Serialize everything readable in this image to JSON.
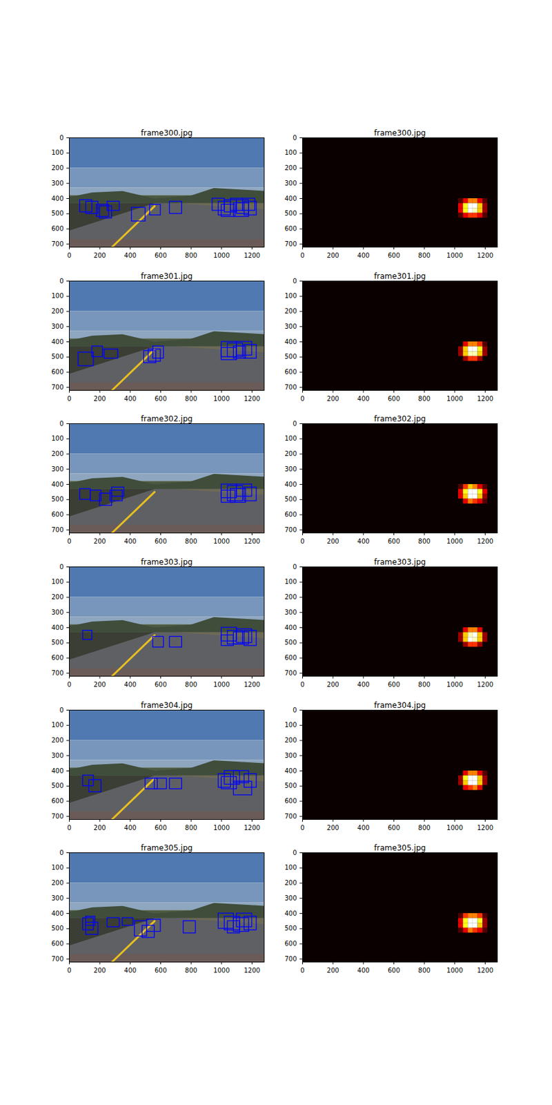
{
  "chart_data": [
    {
      "type": "image_boxes",
      "title": "frame300.jpg",
      "xlim": [
        0,
        1280
      ],
      "ylim": [
        720,
        0
      ],
      "xticks": [
        0,
        200,
        400,
        600,
        800,
        1000,
        1200
      ],
      "yticks": [
        0,
        100,
        200,
        300,
        400,
        500,
        600,
        700
      ],
      "color": "#0000ff",
      "boxes": [
        [
          70,
          410,
          150,
          490
        ],
        [
          110,
          420,
          190,
          500
        ],
        [
          180,
          440,
          260,
          520
        ],
        [
          200,
          450,
          280,
          530
        ],
        [
          250,
          420,
          330,
          480
        ],
        [
          410,
          460,
          500,
          550
        ],
        [
          530,
          440,
          600,
          510
        ],
        [
          660,
          420,
          740,
          500
        ],
        [
          940,
          400,
          1020,
          480
        ],
        [
          980,
          420,
          1060,
          510
        ],
        [
          1020,
          410,
          1100,
          490
        ],
        [
          1060,
          400,
          1140,
          480
        ],
        [
          1100,
          410,
          1180,
          500
        ],
        [
          1140,
          400,
          1220,
          480
        ],
        [
          1000,
          440,
          1090,
          520
        ],
        [
          1080,
          430,
          1180,
          520
        ],
        [
          1150,
          420,
          1230,
          510
        ]
      ]
    },
    {
      "type": "heatmap",
      "title": "frame300.jpg",
      "xlim": [
        0,
        1280
      ],
      "ylim": [
        720,
        0
      ],
      "xticks": [
        0,
        200,
        400,
        600,
        800,
        1000,
        1200
      ],
      "yticks": [
        0,
        100,
        200,
        300,
        400,
        500,
        600,
        700
      ],
      "zlim": [
        0,
        10
      ],
      "x_edges": [
        1024,
        1056,
        1088,
        1120,
        1152,
        1184,
        1216
      ],
      "y_edges": [
        400,
        432,
        464,
        496,
        528
      ],
      "values": [
        [
          1,
          3,
          5,
          5,
          3,
          1
        ],
        [
          3,
          7,
          10,
          10,
          6,
          2
        ],
        [
          3,
          7,
          10,
          9,
          6,
          2
        ],
        [
          1,
          3,
          4,
          4,
          3,
          1
        ]
      ]
    },
    {
      "type": "image_boxes",
      "title": "frame301.jpg",
      "xlim": [
        0,
        1280
      ],
      "ylim": [
        720,
        0
      ],
      "xticks": [
        0,
        200,
        400,
        600,
        800,
        1000,
        1200
      ],
      "yticks": [
        0,
        100,
        200,
        300,
        400,
        500,
        600,
        700
      ],
      "color": "#0000ff",
      "boxes": [
        [
          60,
          470,
          160,
          560
        ],
        [
          150,
          430,
          220,
          500
        ],
        [
          230,
          450,
          320,
          510
        ],
        [
          490,
          460,
          570,
          540
        ],
        [
          520,
          450,
          600,
          530
        ],
        [
          550,
          430,
          620,
          510
        ],
        [
          1000,
          400,
          1100,
          500
        ],
        [
          1040,
          410,
          1140,
          500
        ],
        [
          1100,
          400,
          1200,
          490
        ],
        [
          1000,
          440,
          1100,
          520
        ],
        [
          1150,
          420,
          1230,
          510
        ],
        [
          1080,
          430,
          1160,
          510
        ]
      ]
    },
    {
      "type": "heatmap",
      "title": "frame301.jpg",
      "xlim": [
        0,
        1280
      ],
      "ylim": [
        720,
        0
      ],
      "xticks": [
        0,
        200,
        400,
        600,
        800,
        1000,
        1200
      ],
      "yticks": [
        0,
        100,
        200,
        300,
        400,
        500,
        600,
        700
      ],
      "zlim": [
        0,
        10
      ],
      "x_edges": [
        1024,
        1056,
        1088,
        1120,
        1152,
        1184,
        1216
      ],
      "y_edges": [
        400,
        432,
        464,
        496,
        528
      ],
      "values": [
        [
          0,
          3,
          5,
          5,
          4,
          1
        ],
        [
          2,
          6,
          10,
          10,
          7,
          2
        ],
        [
          2,
          6,
          9,
          9,
          6,
          2
        ],
        [
          0,
          2,
          4,
          4,
          2,
          0
        ]
      ]
    },
    {
      "type": "image_boxes",
      "title": "frame302.jpg",
      "xlim": [
        0,
        1280
      ],
      "ylim": [
        720,
        0
      ],
      "xticks": [
        0,
        200,
        400,
        600,
        800,
        1000,
        1200
      ],
      "yticks": [
        0,
        100,
        200,
        300,
        400,
        500,
        600,
        700
      ],
      "color": "#0000ff",
      "boxes": [
        [
          70,
          430,
          140,
          500
        ],
        [
          140,
          440,
          210,
          510
        ],
        [
          200,
          460,
          280,
          540
        ],
        [
          270,
          440,
          350,
          510
        ],
        [
          280,
          420,
          360,
          480
        ],
        [
          1000,
          400,
          1100,
          490
        ],
        [
          1040,
          410,
          1140,
          510
        ],
        [
          1100,
          400,
          1200,
          480
        ],
        [
          1000,
          440,
          1090,
          520
        ],
        [
          1150,
          420,
          1230,
          510
        ],
        [
          1060,
          430,
          1160,
          520
        ]
      ]
    },
    {
      "type": "heatmap",
      "title": "frame302.jpg",
      "xlim": [
        0,
        1280
      ],
      "ylim": [
        720,
        0
      ],
      "xticks": [
        0,
        200,
        400,
        600,
        800,
        1000,
        1200
      ],
      "yticks": [
        0,
        100,
        200,
        300,
        400,
        500,
        600,
        700
      ],
      "zlim": [
        0,
        10
      ],
      "x_edges": [
        1024,
        1056,
        1088,
        1120,
        1152,
        1184,
        1216
      ],
      "y_edges": [
        400,
        432,
        464,
        496,
        528
      ],
      "values": [
        [
          1,
          4,
          6,
          5,
          3,
          1
        ],
        [
          3,
          7,
          10,
          10,
          7,
          3
        ],
        [
          3,
          6,
          10,
          10,
          6,
          2
        ],
        [
          0,
          3,
          5,
          4,
          3,
          1
        ]
      ]
    },
    {
      "type": "image_boxes",
      "title": "frame303.jpg",
      "xlim": [
        0,
        1280
      ],
      "ylim": [
        720,
        0
      ],
      "xticks": [
        0,
        200,
        400,
        600,
        800,
        1000,
        1200
      ],
      "yticks": [
        0,
        100,
        200,
        300,
        400,
        500,
        600,
        700
      ],
      "color": "#0000ff",
      "boxes": [
        [
          90,
          420,
          150,
          480
        ],
        [
          550,
          460,
          620,
          530
        ],
        [
          660,
          460,
          740,
          530
        ],
        [
          1000,
          400,
          1100,
          490
        ],
        [
          1040,
          420,
          1140,
          510
        ],
        [
          1100,
          410,
          1200,
          500
        ],
        [
          1000,
          450,
          1080,
          520
        ],
        [
          1150,
          420,
          1230,
          520
        ],
        [
          1080,
          430,
          1180,
          510
        ]
      ]
    },
    {
      "type": "heatmap",
      "title": "frame303.jpg",
      "xlim": [
        0,
        1280
      ],
      "ylim": [
        720,
        0
      ],
      "xticks": [
        0,
        200,
        400,
        600,
        800,
        1000,
        1200
      ],
      "yticks": [
        0,
        100,
        200,
        300,
        400,
        500,
        600,
        700
      ],
      "zlim": [
        0,
        10
      ],
      "x_edges": [
        1024,
        1056,
        1088,
        1120,
        1152,
        1184,
        1216
      ],
      "y_edges": [
        400,
        432,
        464,
        496,
        528
      ],
      "values": [
        [
          0,
          3,
          5,
          5,
          3,
          0
        ],
        [
          2,
          6,
          9,
          10,
          6,
          2
        ],
        [
          2,
          6,
          10,
          9,
          6,
          2
        ],
        [
          0,
          2,
          4,
          4,
          2,
          0
        ]
      ]
    },
    {
      "type": "image_boxes",
      "title": "frame304.jpg",
      "xlim": [
        0,
        1280
      ],
      "ylim": [
        720,
        0
      ],
      "xticks": [
        0,
        200,
        400,
        600,
        800,
        1000,
        1200
      ],
      "yticks": [
        0,
        100,
        200,
        300,
        400,
        500,
        600,
        700
      ],
      "color": "#0000ff",
      "boxes": [
        [
          90,
          430,
          160,
          500
        ],
        [
          130,
          460,
          210,
          540
        ],
        [
          500,
          450,
          580,
          520
        ],
        [
          560,
          450,
          640,
          520
        ],
        [
          660,
          450,
          740,
          520
        ],
        [
          980,
          420,
          1060,
          510
        ],
        [
          1020,
          400,
          1120,
          490
        ],
        [
          1080,
          400,
          1180,
          480
        ],
        [
          1000,
          440,
          1100,
          520
        ],
        [
          1080,
          470,
          1200,
          560
        ],
        [
          1150,
          420,
          1230,
          510
        ]
      ]
    },
    {
      "type": "heatmap",
      "title": "frame304.jpg",
      "xlim": [
        0,
        1280
      ],
      "ylim": [
        720,
        0
      ],
      "xticks": [
        0,
        200,
        400,
        600,
        800,
        1000,
        1200
      ],
      "yticks": [
        0,
        100,
        200,
        300,
        400,
        500,
        600,
        700
      ],
      "zlim": [
        0,
        10
      ],
      "x_edges": [
        1024,
        1056,
        1088,
        1120,
        1152,
        1184,
        1216
      ],
      "y_edges": [
        400,
        432,
        464,
        496,
        528
      ],
      "values": [
        [
          0,
          3,
          5,
          5,
          3,
          1
        ],
        [
          2,
          7,
          10,
          10,
          6,
          2
        ],
        [
          2,
          6,
          10,
          10,
          6,
          2
        ],
        [
          0,
          3,
          4,
          5,
          3,
          0
        ]
      ]
    },
    {
      "type": "image_boxes",
      "title": "frame305.jpg",
      "xlim": [
        0,
        1280
      ],
      "ylim": [
        720,
        0
      ],
      "xticks": [
        0,
        200,
        400,
        600,
        800,
        1000,
        1200
      ],
      "yticks": [
        0,
        100,
        200,
        300,
        400,
        500,
        600,
        700
      ],
      "color": "#0000ff",
      "boxes": [
        [
          90,
          430,
          160,
          510
        ],
        [
          110,
          460,
          190,
          540
        ],
        [
          110,
          420,
          170,
          480
        ],
        [
          250,
          430,
          330,
          490
        ],
        [
          350,
          430,
          420,
          480
        ],
        [
          430,
          450,
          510,
          550
        ],
        [
          480,
          480,
          560,
          560
        ],
        [
          510,
          440,
          600,
          520
        ],
        [
          750,
          450,
          830,
          530
        ],
        [
          980,
          400,
          1080,
          500
        ],
        [
          1020,
          420,
          1120,
          510
        ],
        [
          1100,
          400,
          1200,
          490
        ],
        [
          1040,
          450,
          1120,
          530
        ],
        [
          1150,
          420,
          1230,
          510
        ],
        [
          1080,
          430,
          1180,
          520
        ]
      ]
    },
    {
      "type": "heatmap",
      "title": "frame305.jpg",
      "xlim": [
        0,
        1280
      ],
      "ylim": [
        720,
        0
      ],
      "xticks": [
        0,
        200,
        400,
        600,
        800,
        1000,
        1200
      ],
      "yticks": [
        0,
        100,
        200,
        300,
        400,
        500,
        600,
        700
      ],
      "zlim": [
        0,
        10
      ],
      "x_edges": [
        1024,
        1056,
        1088,
        1120,
        1152,
        1184,
        1216
      ],
      "y_edges": [
        400,
        432,
        464,
        496,
        528
      ],
      "values": [
        [
          1,
          4,
          5,
          5,
          4,
          1
        ],
        [
          3,
          7,
          10,
          10,
          7,
          2
        ],
        [
          3,
          7,
          10,
          10,
          6,
          2
        ],
        [
          1,
          3,
          5,
          4,
          3,
          1
        ]
      ]
    }
  ]
}
